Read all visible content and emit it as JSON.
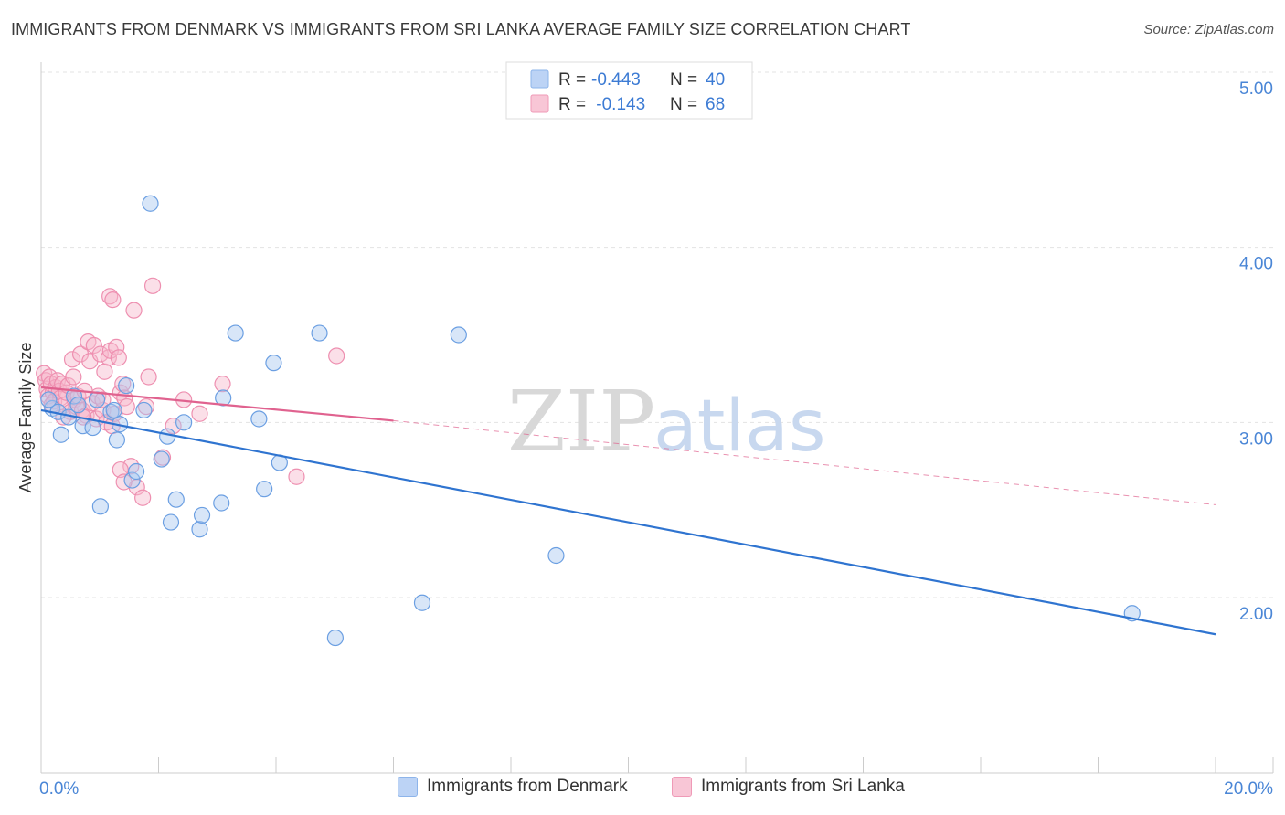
{
  "title": "IMMIGRANTS FROM DENMARK VS IMMIGRANTS FROM SRI LANKA AVERAGE FAMILY SIZE CORRELATION CHART",
  "source": "Source: ZipAtlas.com",
  "watermark": {
    "zip": "ZIP",
    "atlas": "atlas"
  },
  "legend_top": {
    "rows": [
      {
        "r_label": "R = ",
        "r_value": "-0.443",
        "n_label": "N = ",
        "n_value": "40"
      },
      {
        "r_label": "R = ",
        "r_value": " -0.143",
        "n_label": "N = ",
        "n_value": "68"
      }
    ]
  },
  "legend_bottom": {
    "denmark": "Immigrants from Denmark",
    "srilanka": "Immigrants from Sri Lanka"
  },
  "chart_data": {
    "type": "scatter",
    "title": "IMMIGRANTS FROM DENMARK VS IMMIGRANTS FROM SRI LANKA AVERAGE FAMILY SIZE CORRELATION CHART",
    "xlabel": "",
    "ylabel": "Average Family Size",
    "xlim": [
      0,
      20
    ],
    "ylim": [
      1.0,
      5.1
    ],
    "x_tick_labels": [
      "0.0%",
      "20.0%"
    ],
    "y_ticks": [
      2.0,
      3.0,
      4.0,
      5.0
    ],
    "y_tick_labels": [
      "2.00",
      "3.00",
      "4.00",
      "5.00"
    ],
    "grid": true,
    "colors": {
      "denmark": "#2f74d0",
      "denmark_fill": "#a9c8f0",
      "srilanka": "#e0628f",
      "srilanka_fill": "#f6b8cc",
      "tick_text": "#4a86d6"
    },
    "series": [
      {
        "name": "Immigrants from Denmark",
        "color": "#2f74d0",
        "trend": {
          "x0": 0.0,
          "y0": 3.07,
          "x1": 20.0,
          "y1": 1.79
        },
        "points": [
          [
            1.86,
            4.25
          ],
          [
            0.19,
            3.08
          ],
          [
            0.29,
            3.06
          ],
          [
            0.34,
            2.93
          ],
          [
            0.47,
            3.03
          ],
          [
            0.56,
            3.15
          ],
          [
            0.71,
            2.98
          ],
          [
            0.88,
            2.97
          ],
          [
            1.01,
            2.52
          ],
          [
            1.19,
            3.06
          ],
          [
            1.29,
            2.9
          ],
          [
            1.34,
            2.99
          ],
          [
            1.45,
            3.21
          ],
          [
            1.55,
            2.67
          ],
          [
            1.62,
            2.72
          ],
          [
            1.75,
            3.07
          ],
          [
            2.05,
            2.79
          ],
          [
            2.15,
            2.92
          ],
          [
            2.21,
            2.43
          ],
          [
            2.3,
            2.56
          ],
          [
            2.43,
            3.0
          ],
          [
            2.7,
            2.39
          ],
          [
            2.74,
            2.47
          ],
          [
            3.07,
            2.54
          ],
          [
            3.1,
            3.14
          ],
          [
            3.31,
            3.51
          ],
          [
            3.71,
            3.02
          ],
          [
            3.8,
            2.62
          ],
          [
            3.96,
            3.34
          ],
          [
            4.06,
            2.77
          ],
          [
            4.74,
            3.51
          ],
          [
            5.01,
            1.77
          ],
          [
            6.49,
            1.97
          ],
          [
            7.11,
            3.5
          ],
          [
            8.77,
            2.24
          ],
          [
            18.58,
            1.91
          ],
          [
            0.13,
            3.13
          ],
          [
            0.63,
            3.1
          ],
          [
            0.95,
            3.13
          ],
          [
            1.24,
            3.07
          ]
        ]
      },
      {
        "name": "Immigrants from Sri Lanka",
        "color": "#e0628f",
        "trend": {
          "x0": 0.0,
          "y0": 3.2,
          "x1": 6.0,
          "y1": 3.01,
          "dash_x1": 20.0,
          "dash_y1": 2.53
        },
        "points": [
          [
            0.05,
            3.28
          ],
          [
            0.08,
            3.24
          ],
          [
            0.1,
            3.19
          ],
          [
            0.12,
            3.15
          ],
          [
            0.14,
            3.26
          ],
          [
            0.17,
            3.22
          ],
          [
            0.2,
            3.17
          ],
          [
            0.22,
            3.12
          ],
          [
            0.25,
            3.2
          ],
          [
            0.28,
            3.24
          ],
          [
            0.31,
            3.18
          ],
          [
            0.33,
            3.14
          ],
          [
            0.36,
            3.22
          ],
          [
            0.4,
            3.1
          ],
          [
            0.43,
            3.17
          ],
          [
            0.46,
            3.21
          ],
          [
            0.5,
            3.06
          ],
          [
            0.53,
            3.36
          ],
          [
            0.57,
            3.13
          ],
          [
            0.6,
            3.09
          ],
          [
            0.63,
            3.15
          ],
          [
            0.67,
            3.39
          ],
          [
            0.7,
            3.07
          ],
          [
            0.74,
            3.18
          ],
          [
            0.77,
            3.04
          ],
          [
            0.8,
            3.46
          ],
          [
            0.83,
            3.35
          ],
          [
            0.87,
            3.11
          ],
          [
            0.9,
            3.44
          ],
          [
            0.94,
            3.02
          ],
          [
            0.97,
            3.15
          ],
          [
            1.01,
            3.39
          ],
          [
            1.05,
            3.07
          ],
          [
            1.08,
            3.29
          ],
          [
            1.11,
            3.0
          ],
          [
            1.15,
            3.37
          ],
          [
            1.18,
            3.41
          ],
          [
            1.21,
            2.98
          ],
          [
            1.25,
            3.05
          ],
          [
            1.28,
            3.43
          ],
          [
            1.32,
            3.37
          ],
          [
            1.35,
            3.17
          ],
          [
            1.39,
            3.22
          ],
          [
            1.42,
            3.14
          ],
          [
            1.46,
            3.09
          ],
          [
            1.17,
            3.72
          ],
          [
            1.22,
            3.7
          ],
          [
            1.58,
            3.64
          ],
          [
            1.9,
            3.78
          ],
          [
            1.83,
            3.26
          ],
          [
            1.79,
            3.09
          ],
          [
            1.53,
            2.75
          ],
          [
            1.63,
            2.63
          ],
          [
            1.73,
            2.57
          ],
          [
            1.35,
            2.73
          ],
          [
            1.41,
            2.66
          ],
          [
            2.07,
            2.8
          ],
          [
            2.43,
            3.13
          ],
          [
            2.7,
            3.05
          ],
          [
            3.09,
            3.22
          ],
          [
            2.25,
            2.98
          ],
          [
            4.35,
            2.69
          ],
          [
            5.03,
            3.38
          ],
          [
            0.18,
            3.1
          ],
          [
            0.38,
            3.03
          ],
          [
            0.55,
            3.26
          ],
          [
            0.72,
            3.03
          ],
          [
            1.05,
            3.13
          ]
        ]
      }
    ]
  }
}
